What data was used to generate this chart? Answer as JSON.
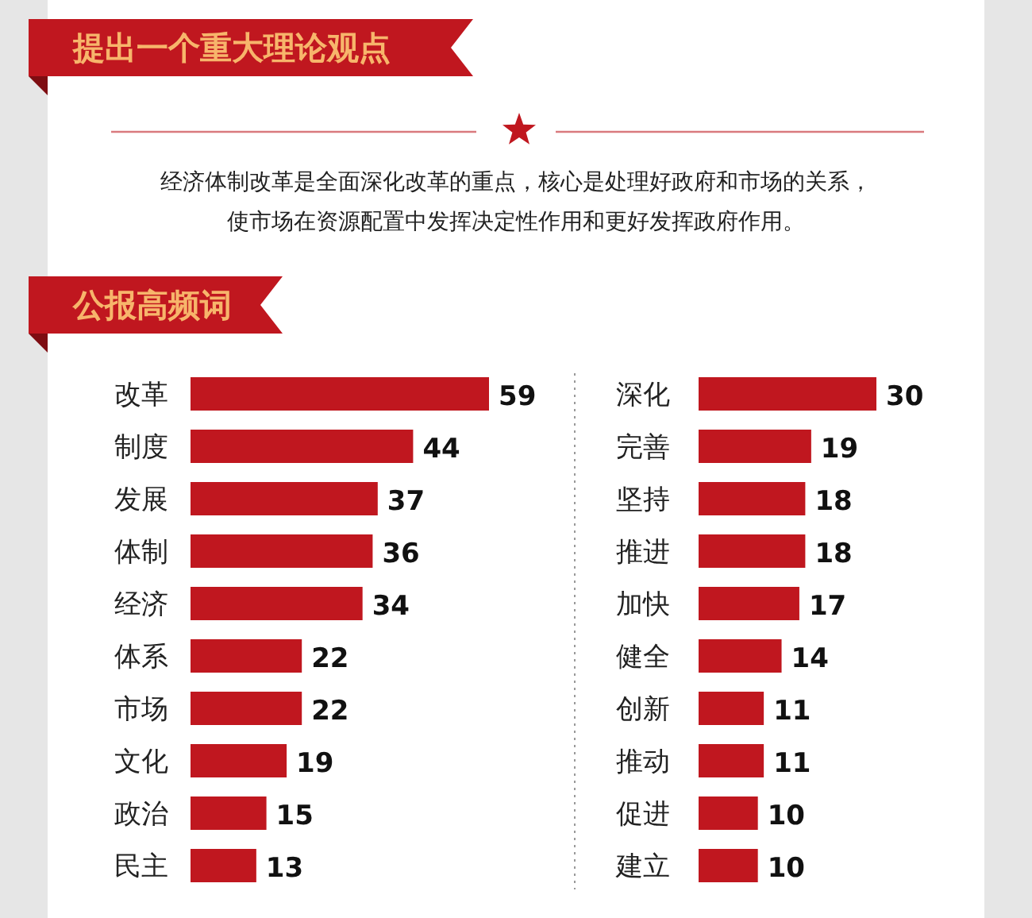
{
  "chart_data": [
    {
      "type": "other",
      "title": "提出一个重大理论观点",
      "annotations": [
        "经济体制改革是全面深化改革的重点，核心是处理好政府和市场的关系，",
        "使市场在资源配置中发挥决定性作用和更好发挥政府作用。"
      ]
    },
    {
      "type": "bar",
      "orientation": "horizontal",
      "title": "公报高频词",
      "categories": [
        "改革",
        "制度",
        "发展",
        "体制",
        "经济",
        "体系",
        "市场",
        "文化",
        "政治",
        "民主"
      ],
      "values": [
        59,
        44,
        37,
        36,
        34,
        22,
        22,
        19,
        15,
        13
      ],
      "color": "#c0171f",
      "data_labels": true
    },
    {
      "type": "bar",
      "orientation": "horizontal",
      "categories": [
        "深化",
        "完善",
        "坚持",
        "推进",
        "加快",
        "健全",
        "创新",
        "推动",
        "促进",
        "建立"
      ],
      "values": [
        30,
        19,
        18,
        18,
        17,
        14,
        11,
        11,
        10,
        10
      ],
      "color": "#c0171f",
      "data_labels": true
    }
  ]
}
